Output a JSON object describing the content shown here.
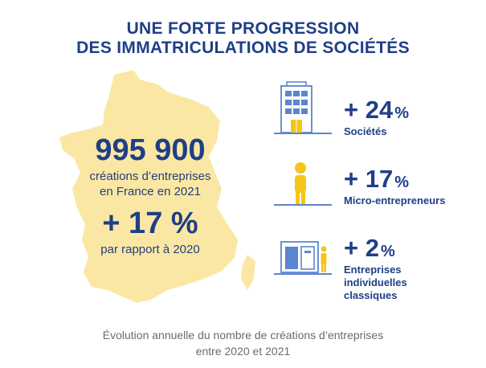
{
  "title": {
    "line1": "UNE FORTE PROGRESSION",
    "line2": "DES IMMATRICULATIONS DE SOCIÉTÉS"
  },
  "main_stat": {
    "number": "995 900",
    "desc_line1": "créations d’entreprises",
    "desc_line2": "en France en 2021",
    "pct": "+ 17 %",
    "pct_desc": "par rapport à 2020"
  },
  "stats": [
    {
      "pct": "+ 24",
      "unit": "%",
      "label_lines": [
        "Sociétés"
      ],
      "icon": "building-icon"
    },
    {
      "pct": "+ 17",
      "unit": "%",
      "label_lines": [
        "Micro-entrepreneurs"
      ],
      "icon": "person-icon"
    },
    {
      "pct": "+ 2",
      "unit": "%",
      "label_lines": [
        "Entreprises",
        "individuelles",
        "classiques"
      ],
      "icon": "shop-icon"
    }
  ],
  "caption": {
    "line1": "Évolution annuelle du nombre de créations d’entreprises",
    "line2": "entre 2020 et 2021"
  },
  "colors": {
    "navy": "#1f3f87",
    "map_yellow": "#fbe7a4",
    "accent_yellow": "#f5c518",
    "icon_blue": "#5b86cf",
    "caption_gray": "#6b6b6b"
  }
}
